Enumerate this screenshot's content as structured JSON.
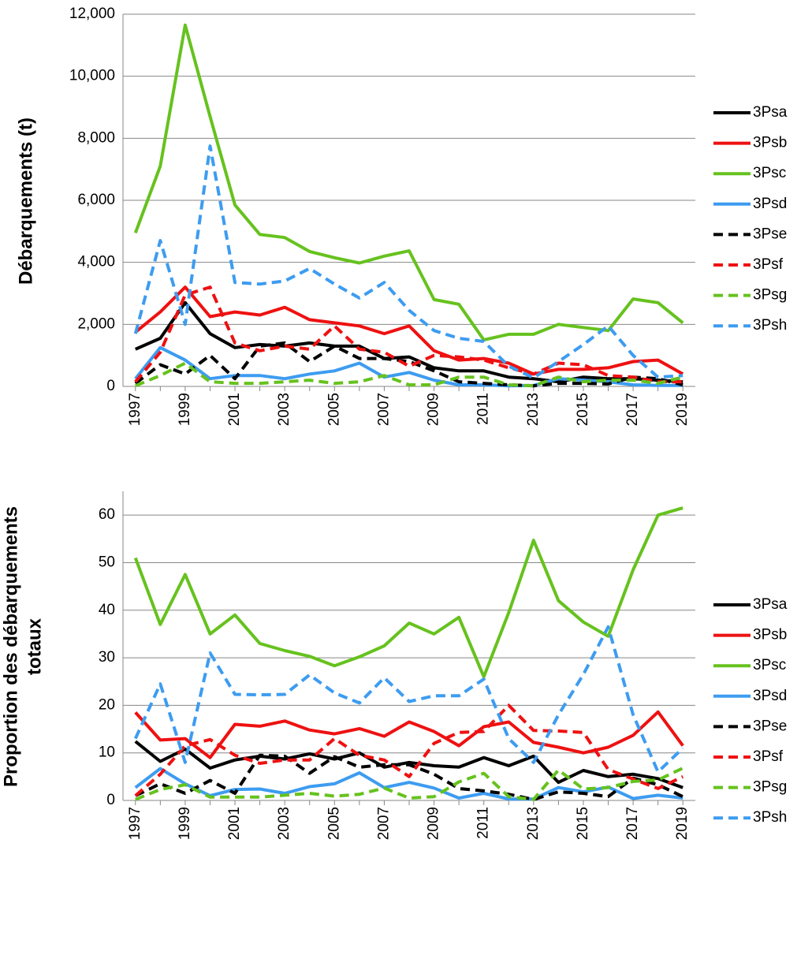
{
  "chart_data": [
    {
      "type": "line",
      "ylabel": "Débarquements (t)",
      "x": [
        1997,
        1998,
        1999,
        2000,
        2001,
        2002,
        2003,
        2004,
        2005,
        2006,
        2007,
        2008,
        2009,
        2010,
        2011,
        2012,
        2013,
        2014,
        2015,
        2016,
        2017,
        2018,
        2019
      ],
      "xlim": [
        1996.5,
        2019.5
      ],
      "xticks": [
        1997,
        1999,
        2001,
        2003,
        2005,
        2007,
        2009,
        2011,
        2013,
        2015,
        2017,
        2019
      ],
      "ylim": [
        0,
        12000
      ],
      "yticks": [
        0,
        {
          "value": 2000,
          "label": "2,000"
        },
        {
          "value": 4000,
          "label": "4,000"
        },
        {
          "value": 6000,
          "label": "6,000"
        },
        {
          "value": 8000,
          "label": "8,000"
        },
        {
          "value": 10000,
          "label": "10,000"
        },
        {
          "value": 12000,
          "label": "12,000"
        }
      ],
      "grid": true,
      "legend": "right",
      "series": [
        {
          "name": "3Psa",
          "color": "#000000",
          "dashed": false,
          "values": [
            1200,
            1550,
            2700,
            1700,
            1250,
            1350,
            1300,
            1400,
            1300,
            1300,
            900,
            950,
            600,
            500,
            500,
            300,
            250,
            150,
            300,
            250,
            250,
            200,
            150
          ]
        },
        {
          "name": "3Psb",
          "color": "#ee1111",
          "dashed": false,
          "values": [
            1750,
            2400,
            3200,
            2250,
            2400,
            2300,
            2550,
            2150,
            2050,
            1950,
            1700,
            1950,
            1150,
            850,
            900,
            750,
            400,
            550,
            550,
            600,
            800,
            850,
            400
          ]
        },
        {
          "name": "3Psc",
          "color": "#66c21e",
          "dashed": false,
          "values": [
            4950,
            7100,
            11650,
            8700,
            5850,
            4900,
            4800,
            4350,
            4150,
            3980,
            4200,
            4370,
            2800,
            2650,
            1500,
            1680,
            1680,
            2000,
            1900,
            1800,
            2820,
            2700,
            2050
          ]
        },
        {
          "name": "3Psd",
          "color": "#3d9cf0",
          "dashed": false,
          "values": [
            250,
            1250,
            850,
            250,
            350,
            350,
            250,
            400,
            500,
            750,
            300,
            450,
            200,
            50,
            50,
            20,
            30,
            250,
            200,
            150,
            50,
            30,
            30
          ]
        },
        {
          "name": "3Pse",
          "color": "#000000",
          "dashed": true,
          "values": [
            100,
            700,
            400,
            1000,
            250,
            1300,
            1400,
            800,
            1300,
            900,
            900,
            800,
            500,
            150,
            100,
            50,
            20,
            100,
            100,
            80,
            300,
            250,
            50
          ]
        },
        {
          "name": "3Psf",
          "color": "#ee1111",
          "dashed": true,
          "values": [
            150,
            1100,
            2950,
            3200,
            1400,
            1150,
            1300,
            1200,
            1950,
            1200,
            1100,
            650,
            1000,
            950,
            850,
            600,
            400,
            750,
            700,
            350,
            300,
            150,
            150
          ]
        },
        {
          "name": "3Psg",
          "color": "#66c21e",
          "dashed": true,
          "values": [
            20,
            350,
            750,
            150,
            100,
            100,
            150,
            200,
            100,
            150,
            350,
            50,
            50,
            300,
            300,
            50,
            20,
            300,
            150,
            200,
            200,
            100,
            300
          ]
        },
        {
          "name": "3Psh",
          "color": "#3d9cf0",
          "dashed": true,
          "values": [
            1700,
            4700,
            2000,
            7750,
            3350,
            3300,
            3400,
            3800,
            3300,
            2850,
            3350,
            2450,
            1800,
            1550,
            1450,
            650,
            280,
            800,
            1350,
            1950,
            1000,
            300,
            350
          ]
        }
      ]
    },
    {
      "type": "line",
      "ylabel": [
        "Proportion des débarquements",
        "totaux"
      ],
      "x": [
        1997,
        1998,
        1999,
        2000,
        2001,
        2002,
        2003,
        2004,
        2005,
        2006,
        2007,
        2008,
        2009,
        2010,
        2011,
        2012,
        2013,
        2014,
        2015,
        2016,
        2017,
        2018,
        2019
      ],
      "xlim": [
        1996.5,
        2019.5
      ],
      "xticks": [
        1997,
        1999,
        2001,
        2003,
        2005,
        2007,
        2009,
        2011,
        2013,
        2015,
        2017,
        2019
      ],
      "ylim": [
        0,
        65
      ],
      "yticks": [
        0,
        10,
        20,
        30,
        40,
        50,
        60
      ],
      "grid": true,
      "legend": "right",
      "series": [
        {
          "name": "3Psa",
          "color": "#000000",
          "dashed": false,
          "values": [
            12.4,
            8.2,
            10.8,
            6.8,
            8.5,
            9.3,
            8.7,
            9.8,
            8.7,
            10,
            7,
            8,
            7.3,
            7,
            9,
            7.3,
            9.3,
            3.8,
            6.3,
            5,
            5.5,
            4.6,
            2.7
          ]
        },
        {
          "name": "3Psb",
          "color": "#ee1111",
          "dashed": false,
          "values": [
            18.5,
            12.7,
            13,
            9,
            16,
            15.6,
            16.7,
            14.8,
            14,
            15.1,
            13.5,
            16.5,
            14.5,
            11.5,
            15.5,
            16.5,
            12.2,
            11.2,
            10,
            11.2,
            13.7,
            18.6,
            11.5
          ]
        },
        {
          "name": "3Psc",
          "color": "#66c21e",
          "dashed": false,
          "values": [
            51,
            37,
            47.5,
            35,
            39,
            33,
            31.5,
            30.3,
            28.3,
            30.2,
            32.5,
            37.3,
            35,
            38.5,
            26,
            39.5,
            54.7,
            42,
            37.5,
            34.5,
            48.5,
            60,
            61.5
          ]
        },
        {
          "name": "3Psd",
          "color": "#3d9cf0",
          "dashed": false,
          "values": [
            2.7,
            6.7,
            3.5,
            1,
            2.3,
            2.4,
            1.5,
            2.9,
            3.5,
            5.8,
            2.7,
            3.8,
            2.6,
            0.5,
            1.5,
            0.3,
            0.3,
            2.7,
            1.8,
            2.8,
            0.4,
            1.1,
            0.5
          ]
        },
        {
          "name": "3Pse",
          "color": "#000000",
          "dashed": true,
          "values": [
            1,
            3.5,
            1.5,
            4.2,
            1.5,
            9.5,
            9.3,
            5.7,
            9.2,
            7,
            7.5,
            7.5,
            5.5,
            2.5,
            2,
            1.3,
            0.2,
            1.8,
            1.5,
            0.8,
            4.7,
            3.3,
            0.8
          ]
        },
        {
          "name": "3Psf",
          "color": "#ee1111",
          "dashed": true,
          "values": [
            1,
            5.5,
            11.5,
            12.8,
            9.5,
            7.8,
            8.5,
            8.5,
            13,
            9.5,
            8.5,
            5,
            12,
            14.3,
            14.5,
            20,
            14.7,
            14.6,
            14.3,
            6.5,
            4.5,
            2.5,
            5
          ]
        },
        {
          "name": "3Psg",
          "color": "#66c21e",
          "dashed": true,
          "values": [
            0.2,
            2.3,
            3.3,
            0.7,
            0.7,
            0.7,
            1.1,
            1.5,
            0.9,
            1.3,
            2.6,
            0.5,
            0.8,
            3.9,
            5.7,
            0.8,
            0.2,
            6.4,
            2.4,
            2.7,
            4,
            4.3,
            6.8
          ]
        },
        {
          "name": "3Psh",
          "color": "#3d9cf0",
          "dashed": true,
          "values": [
            13,
            24.5,
            8,
            31,
            22.3,
            22.2,
            22.3,
            26.4,
            22.6,
            20.5,
            25.8,
            20.8,
            22,
            22,
            25.5,
            13,
            8,
            18,
            26.5,
            36.5,
            18,
            6,
            11
          ]
        }
      ]
    }
  ]
}
